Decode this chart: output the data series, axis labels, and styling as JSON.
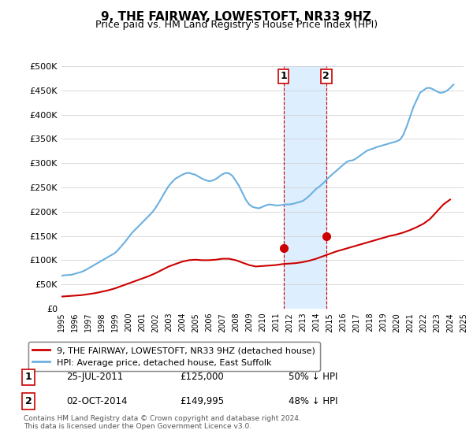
{
  "title": "9, THE FAIRWAY, LOWESTOFT, NR33 9HZ",
  "subtitle": "Price paid vs. HM Land Registry's House Price Index (HPI)",
  "ylabel": "",
  "xlabel": "",
  "ylim": [
    0,
    500000
  ],
  "yticks": [
    0,
    50000,
    100000,
    150000,
    200000,
    250000,
    300000,
    350000,
    400000,
    450000,
    500000
  ],
  "ytick_labels": [
    "£0",
    "£50K",
    "£100K",
    "£150K",
    "£200K",
    "£250K",
    "£300K",
    "£350K",
    "£400K",
    "£450K",
    "£500K"
  ],
  "sale1_date": 2011.56,
  "sale1_price": 125000,
  "sale1_label": "1",
  "sale2_date": 2014.75,
  "sale2_price": 149995,
  "sale2_label": "2",
  "hpi_color": "#6ab0e0",
  "price_color": "#cc0000",
  "shade_color": "#ddeeff",
  "marker_box_color": "#cc0000",
  "legend_label_red": "9, THE FAIRWAY, LOWESTOFT, NR33 9HZ (detached house)",
  "legend_label_blue": "HPI: Average price, detached house, East Suffolk",
  "table_row1": [
    "1",
    "25-JUL-2011",
    "£125,000",
    "50% ↓ HPI"
  ],
  "table_row2": [
    "2",
    "02-OCT-2014",
    "£149,995",
    "48% ↓ HPI"
  ],
  "footer": "Contains HM Land Registry data © Crown copyright and database right 2024.\nThis data is licensed under the Open Government Licence v3.0.",
  "title_fontsize": 11,
  "subtitle_fontsize": 9,
  "background_color": "#ffffff",
  "hpi_years": [
    1995.0,
    1995.25,
    1995.5,
    1995.75,
    1996.0,
    1996.25,
    1996.5,
    1996.75,
    1997.0,
    1997.25,
    1997.5,
    1997.75,
    1998.0,
    1998.25,
    1998.5,
    1998.75,
    1999.0,
    1999.25,
    1999.5,
    1999.75,
    2000.0,
    2000.25,
    2000.5,
    2000.75,
    2001.0,
    2001.25,
    2001.5,
    2001.75,
    2002.0,
    2002.25,
    2002.5,
    2002.75,
    2003.0,
    2003.25,
    2003.5,
    2003.75,
    2004.0,
    2004.25,
    2004.5,
    2004.75,
    2005.0,
    2005.25,
    2005.5,
    2005.75,
    2006.0,
    2006.25,
    2006.5,
    2006.75,
    2007.0,
    2007.25,
    2007.5,
    2007.75,
    2008.0,
    2008.25,
    2008.5,
    2008.75,
    2009.0,
    2009.25,
    2009.5,
    2009.75,
    2010.0,
    2010.25,
    2010.5,
    2010.75,
    2011.0,
    2011.25,
    2011.5,
    2011.75,
    2012.0,
    2012.25,
    2012.5,
    2012.75,
    2013.0,
    2013.25,
    2013.5,
    2013.75,
    2014.0,
    2014.25,
    2014.5,
    2014.75,
    2015.0,
    2015.25,
    2015.5,
    2015.75,
    2016.0,
    2016.25,
    2016.5,
    2016.75,
    2017.0,
    2017.25,
    2017.5,
    2017.75,
    2018.0,
    2018.25,
    2018.5,
    2018.75,
    2019.0,
    2019.25,
    2019.5,
    2019.75,
    2020.0,
    2020.25,
    2020.5,
    2020.75,
    2021.0,
    2021.25,
    2021.5,
    2021.75,
    2022.0,
    2022.25,
    2022.5,
    2022.75,
    2023.0,
    2023.25,
    2023.5,
    2023.75,
    2024.0,
    2024.25
  ],
  "hpi_values": [
    68000,
    69000,
    69500,
    70000,
    72000,
    74000,
    76000,
    79000,
    83000,
    87000,
    91000,
    95000,
    99000,
    103000,
    107000,
    111000,
    115000,
    122000,
    130000,
    138000,
    147000,
    156000,
    163000,
    170000,
    177000,
    184000,
    191000,
    198000,
    207000,
    218000,
    230000,
    242000,
    253000,
    261000,
    268000,
    272000,
    276000,
    279000,
    280000,
    278000,
    276000,
    272000,
    268000,
    265000,
    263000,
    264000,
    267000,
    272000,
    277000,
    280000,
    279000,
    274000,
    264000,
    253000,
    239000,
    225000,
    215000,
    210000,
    208000,
    207000,
    210000,
    213000,
    215000,
    214000,
    213000,
    213000,
    214000,
    215000,
    215000,
    216000,
    218000,
    220000,
    222000,
    227000,
    233000,
    240000,
    247000,
    252000,
    258000,
    265000,
    272000,
    278000,
    284000,
    290000,
    296000,
    302000,
    305000,
    306000,
    310000,
    315000,
    320000,
    325000,
    328000,
    330000,
    333000,
    335000,
    337000,
    339000,
    341000,
    343000,
    345000,
    348000,
    358000,
    375000,
    395000,
    415000,
    430000,
    445000,
    450000,
    455000,
    455000,
    452000,
    448000,
    445000,
    446000,
    449000,
    455000,
    462000
  ],
  "price_years": [
    1995.0,
    1995.5,
    1996.0,
    1996.5,
    1997.0,
    1997.5,
    1998.0,
    1998.5,
    1999.0,
    1999.5,
    2000.0,
    2000.5,
    2001.0,
    2001.5,
    2002.0,
    2002.5,
    2003.0,
    2003.5,
    2004.0,
    2004.5,
    2005.0,
    2005.5,
    2006.0,
    2006.5,
    2007.0,
    2007.5,
    2008.0,
    2008.5,
    2009.0,
    2009.5,
    2010.0,
    2010.5,
    2011.0,
    2011.5,
    2012.0,
    2012.5,
    2013.0,
    2013.5,
    2014.0,
    2014.5,
    2015.0,
    2015.5,
    2016.0,
    2016.5,
    2017.0,
    2017.5,
    2018.0,
    2018.5,
    2019.0,
    2019.5,
    2020.0,
    2020.5,
    2021.0,
    2021.5,
    2022.0,
    2022.5,
    2023.0,
    2023.5,
    2024.0
  ],
  "price_values": [
    25000,
    26000,
    27000,
    28000,
    30000,
    32000,
    35000,
    38000,
    42000,
    47000,
    52000,
    57000,
    62000,
    67000,
    73000,
    80000,
    87000,
    92000,
    97000,
    100000,
    101000,
    100000,
    100000,
    101000,
    103000,
    103000,
    100000,
    95000,
    90000,
    87000,
    88000,
    89000,
    90000,
    92000,
    93000,
    94000,
    96000,
    99000,
    103000,
    108000,
    113000,
    118000,
    122000,
    126000,
    130000,
    134000,
    138000,
    142000,
    146000,
    150000,
    153000,
    157000,
    162000,
    168000,
    175000,
    185000,
    200000,
    215000,
    225000
  ]
}
